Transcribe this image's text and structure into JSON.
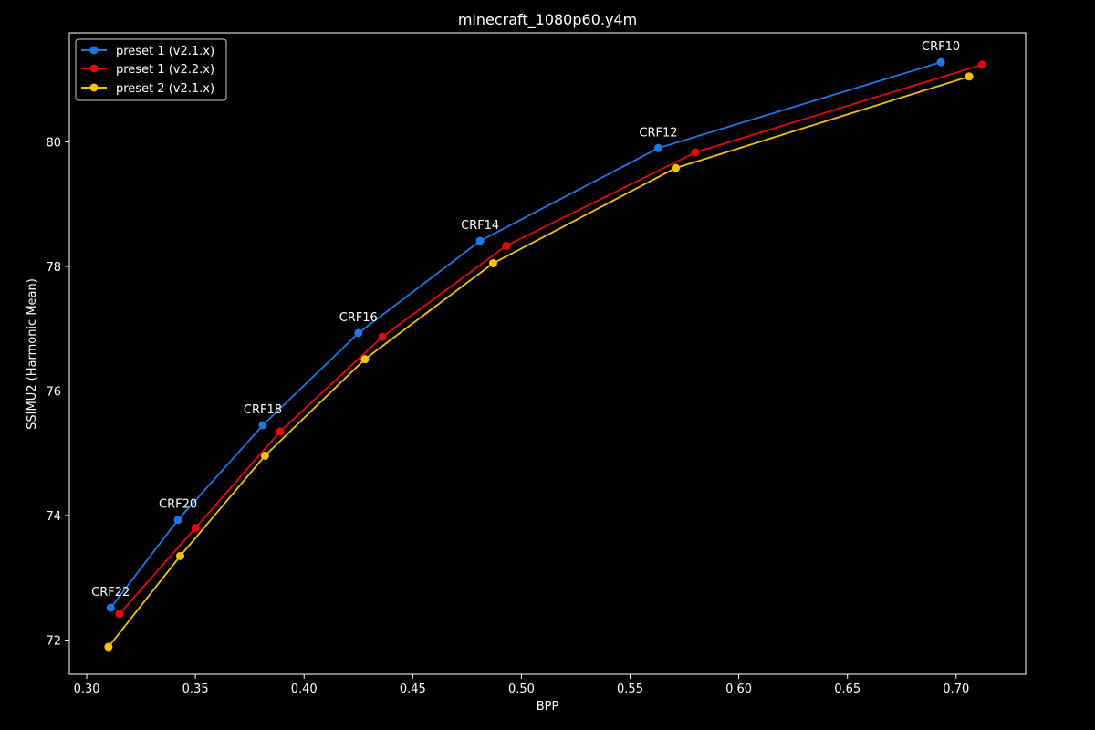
{
  "chart_data": {
    "type": "line",
    "title": "minecraft_1080p60.y4m",
    "xlabel": "BPP",
    "ylabel": "SSIMU2 (Harmonic Mean)",
    "xlim": [
      0.292,
      0.732
    ],
    "ylim": [
      71.45,
      81.75
    ],
    "xticks": [
      "0.30",
      "0.35",
      "0.40",
      "0.45",
      "0.50",
      "0.55",
      "0.60",
      "0.65",
      "0.70"
    ],
    "yticks": [
      "72",
      "74",
      "76",
      "78",
      "80"
    ],
    "grid": false,
    "legend_position": "top-left",
    "background": "#000000",
    "foreground": "#ffffff",
    "series": [
      {
        "name": "preset 1 (v2.1.x)",
        "color": "#1f77e6",
        "x": [
          0.311,
          0.342,
          0.381,
          0.425,
          0.481,
          0.563,
          0.693
        ],
        "y": [
          72.52,
          73.93,
          75.45,
          76.93,
          78.41,
          79.9,
          81.28
        ]
      },
      {
        "name": "preset 1 (v2.2.x)",
        "color": "#e8060f",
        "x": [
          0.315,
          0.35,
          0.389,
          0.436,
          0.493,
          0.58,
          0.712
        ],
        "y": [
          72.42,
          73.8,
          75.35,
          76.87,
          78.33,
          79.83,
          81.24
        ]
      },
      {
        "name": "preset 2 (v2.1.x)",
        "color": "#f5c400",
        "x": [
          0.31,
          0.343,
          0.382,
          0.428,
          0.487,
          0.571,
          0.706
        ],
        "y": [
          71.89,
          73.35,
          74.96,
          76.51,
          78.05,
          79.58,
          81.05
        ]
      }
    ],
    "annotations": [
      {
        "text": "CRF22",
        "x": 0.311,
        "y": 72.52
      },
      {
        "text": "CRF20",
        "x": 0.342,
        "y": 73.93
      },
      {
        "text": "CRF18",
        "x": 0.381,
        "y": 75.45
      },
      {
        "text": "CRF16",
        "x": 0.425,
        "y": 76.93
      },
      {
        "text": "CRF14",
        "x": 0.481,
        "y": 78.41
      },
      {
        "text": "CRF12",
        "x": 0.563,
        "y": 79.9
      },
      {
        "text": "CRF10",
        "x": 0.693,
        "y": 81.28
      }
    ]
  }
}
